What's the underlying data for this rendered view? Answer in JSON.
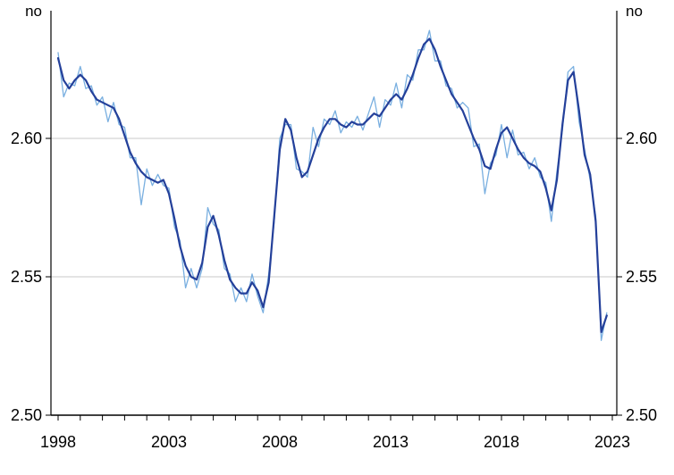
{
  "page": {
    "background": "#ffffff"
  },
  "chart_data": {
    "type": "line",
    "title": "",
    "unit_label_left": "no",
    "unit_label_right": "no",
    "x_start_year": 1998.0,
    "x_step_years": 0.25,
    "x_tick_years": [
      1998,
      2003,
      2008,
      2013,
      2018,
      2023
    ],
    "x_tick_labels": [
      "1998",
      "2003",
      "2008",
      "2013",
      "2018",
      "2023"
    ],
    "x_minor_tick_step_years": 1,
    "x_minor_tick_range": [
      1998,
      2023
    ],
    "y_tick_values": [
      2.5,
      2.55,
      2.6
    ],
    "y_tick_labels": [
      "2.50",
      "2.55",
      "2.60"
    ],
    "ylim": [
      2.5,
      2.6455
    ],
    "xlim_years": [
      1997.68,
      2023.2
    ],
    "gridline_values": [
      2.55,
      2.6
    ],
    "grid_on": true,
    "legend": "none",
    "colors": {
      "original": "#79afe0",
      "trend": "#24409a",
      "grid": "#c9c9c9",
      "axis": "#000000",
      "text": "#000000"
    },
    "series": [
      {
        "name": "Original (light blue, jagged)",
        "key": "original",
        "stroke_width": 1.3,
        "values": [
          2.631,
          2.615,
          2.62,
          2.619,
          2.626,
          2.618,
          2.619,
          2.612,
          2.615,
          2.606,
          2.613,
          2.605,
          2.604,
          2.593,
          2.593,
          2.576,
          2.589,
          2.583,
          2.587,
          2.583,
          2.582,
          2.568,
          2.563,
          2.546,
          2.553,
          2.546,
          2.553,
          2.575,
          2.569,
          2.567,
          2.553,
          2.551,
          2.541,
          2.546,
          2.541,
          2.551,
          2.543,
          2.537,
          2.551,
          2.57,
          2.6,
          2.605,
          2.605,
          2.589,
          2.588,
          2.586,
          2.604,
          2.597,
          2.607,
          2.605,
          2.61,
          2.602,
          2.606,
          2.604,
          2.608,
          2.603,
          2.609,
          2.615,
          2.604,
          2.614,
          2.612,
          2.62,
          2.611,
          2.623,
          2.621,
          2.632,
          2.632,
          2.639,
          2.628,
          2.628,
          2.619,
          2.618,
          2.611,
          2.613,
          2.611,
          2.597,
          2.598,
          2.58,
          2.591,
          2.594,
          2.605,
          2.593,
          2.603,
          2.594,
          2.595,
          2.589,
          2.593,
          2.586,
          2.584,
          2.57,
          2.588,
          2.603,
          2.624,
          2.626,
          2.606,
          2.596,
          2.585,
          2.572,
          2.527,
          2.537
        ]
      },
      {
        "name": "Trend (dark blue, smooth)",
        "key": "trend",
        "stroke_width": 2.2,
        "values": [
          2.629,
          2.621,
          2.618,
          2.621,
          2.623,
          2.621,
          2.617,
          2.614,
          2.613,
          2.612,
          2.611,
          2.607,
          2.601,
          2.595,
          2.591,
          2.588,
          2.586,
          2.585,
          2.584,
          2.585,
          2.58,
          2.571,
          2.561,
          2.554,
          2.55,
          2.549,
          2.555,
          2.568,
          2.572,
          2.565,
          2.556,
          2.549,
          2.546,
          2.544,
          2.544,
          2.548,
          2.545,
          2.539,
          2.548,
          2.572,
          2.596,
          2.607,
          2.603,
          2.593,
          2.586,
          2.588,
          2.594,
          2.6,
          2.604,
          2.607,
          2.607,
          2.605,
          2.604,
          2.606,
          2.605,
          2.605,
          2.607,
          2.609,
          2.608,
          2.611,
          2.614,
          2.616,
          2.614,
          2.618,
          2.623,
          2.629,
          2.634,
          2.636,
          2.632,
          2.626,
          2.621,
          2.616,
          2.613,
          2.61,
          2.605,
          2.6,
          2.596,
          2.59,
          2.589,
          2.596,
          2.602,
          2.604,
          2.6,
          2.596,
          2.593,
          2.591,
          2.59,
          2.588,
          2.582,
          2.574,
          2.585,
          2.605,
          2.621,
          2.624,
          2.61,
          2.594,
          2.587,
          2.57,
          2.53,
          2.536
        ]
      }
    ]
  }
}
